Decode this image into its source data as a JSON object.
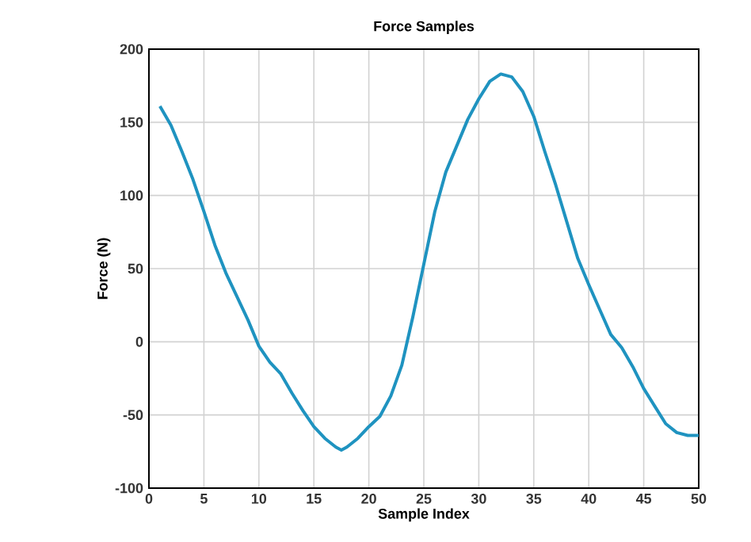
{
  "chart_data": {
    "type": "line",
    "title": "Force Samples",
    "xlabel": "Sample Index",
    "ylabel": "Force (N)",
    "x": [
      1,
      2,
      3,
      4,
      5,
      6,
      7,
      8,
      9,
      10,
      11,
      12,
      13,
      14,
      15,
      16,
      17,
      17.5,
      18,
      19,
      20,
      21,
      22,
      23,
      24,
      25,
      26,
      27,
      28,
      29,
      30,
      31,
      32,
      33,
      34,
      35,
      36,
      37,
      38,
      39,
      40,
      41,
      42,
      43,
      44,
      45,
      46,
      47,
      48,
      49,
      50
    ],
    "series": [
      {
        "color": "#1f93c0",
        "values": [
          161,
          148,
          130,
          111,
          89,
          66,
          47,
          31,
          15,
          -3,
          -14,
          -22,
          -35,
          -47,
          -58,
          -66,
          -72,
          -74,
          -72,
          -66,
          -58,
          -51,
          -37,
          -16,
          17,
          53,
          89,
          116,
          134,
          152,
          166,
          178,
          183,
          181,
          171,
          154,
          130,
          107,
          82,
          57,
          39,
          22,
          5,
          -4,
          -17,
          -32,
          -44,
          -56,
          -62,
          -64,
          -64
        ]
      }
    ],
    "xlim": [
      0,
      50
    ],
    "ylim": [
      -100,
      200
    ],
    "xticks": [
      0,
      5,
      10,
      15,
      20,
      25,
      30,
      35,
      40,
      45,
      50
    ],
    "yticks": [
      -100,
      -50,
      0,
      50,
      100,
      150,
      200
    ],
    "grid": true,
    "marker": "none",
    "line_style": "solid"
  }
}
